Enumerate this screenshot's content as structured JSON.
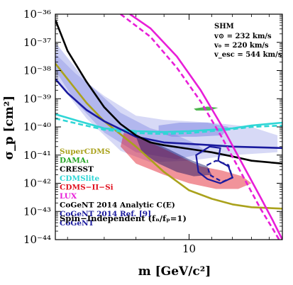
{
  "chart_data": {
    "type": "line",
    "xlabel": "m [GeV/c²]",
    "ylabel": "σ_p [cm²]",
    "x_scale": "log",
    "y_scale": "log",
    "xlim": [
      5.7,
      14.8
    ],
    "ylim": [
      1e-44,
      1e-36
    ],
    "x_ticks": [
      {
        "value": 10,
        "label": "10"
      }
    ],
    "y_ticks": [
      {
        "value": 1e-36,
        "label": "10⁻³⁶"
      },
      {
        "value": 1e-37,
        "label": "10⁻³⁷"
      },
      {
        "value": 1e-38,
        "label": "10⁻³⁸"
      },
      {
        "value": 1e-39,
        "label": "10⁻³⁹"
      },
      {
        "value": 1e-40,
        "label": "10⁻⁴⁰"
      },
      {
        "value": 1e-41,
        "label": "10⁻⁴¹"
      },
      {
        "value": 1e-42,
        "label": "10⁻⁴²"
      },
      {
        "value": 1e-43,
        "label": "10⁻⁴³"
      },
      {
        "value": 1e-44,
        "label": "10⁻⁴⁴"
      }
    ],
    "info_box": {
      "title": "SHM",
      "lines": [
        "v⊙ = 232 km/s",
        "v₀ = 220 km/s",
        "v_esc = 544 km/s"
      ]
    },
    "annotation": "Spin−Independent (fₙ/fₚ=1)",
    "legend": [
      {
        "label": "SuperCDMS",
        "color": "#aaa21c"
      },
      {
        "label": "DAMA₁",
        "color": "#22a322"
      },
      {
        "label": "CRESST",
        "color": "#000000"
      },
      {
        "label": "CDMSlite",
        "color": "#2fd6d6"
      },
      {
        "label": "CDMS−II−Si",
        "color": "#e0101e"
      },
      {
        "label": "LUX",
        "color": "#e81ed8"
      },
      {
        "label": "CoGeNT 2014 Analytic C(E)",
        "color": "#000000"
      },
      {
        "label": "CoGeNT 2014 Ref. [9]",
        "color": "#1a1a9e"
      },
      {
        "label": "CoGeNT",
        "color": "#1a1a9e"
      }
    ],
    "series": [
      {
        "color": "#aaa21c",
        "style": "solid",
        "points": [
          [
            5.7,
            -37.75
          ],
          [
            6.0,
            -38.3
          ],
          [
            6.5,
            -39.15
          ],
          [
            7,
            -39.8
          ],
          [
            8,
            -40.7
          ],
          [
            9,
            -41.6
          ],
          [
            10,
            -42.25
          ],
          [
            11,
            -42.55
          ],
          [
            12,
            -42.75
          ],
          [
            13,
            -42.85
          ],
          [
            14.8,
            -42.9
          ]
        ]
      },
      {
        "color": "#2fd6d6",
        "style": "solid",
        "points": [
          [
            5.7,
            -39.55
          ],
          [
            6.3,
            -39.8
          ],
          [
            7,
            -40.05
          ],
          [
            8,
            -40.15
          ],
          [
            9,
            -40.18
          ],
          [
            10,
            -40.15
          ],
          [
            11,
            -40.1
          ],
          [
            12,
            -40.05
          ],
          [
            13,
            -39.95
          ],
          [
            14.8,
            -39.85
          ]
        ]
      },
      {
        "color": "#2fd6d6",
        "style": "dashed",
        "points": [
          [
            5.7,
            -39.7
          ],
          [
            6.3,
            -39.9
          ],
          [
            7,
            -40.1
          ],
          [
            8,
            -40.22
          ],
          [
            9,
            -40.25
          ],
          [
            10,
            -40.22
          ],
          [
            11,
            -40.15
          ],
          [
            12,
            -40.08
          ],
          [
            13,
            -40.0
          ],
          [
            14.8,
            -39.95
          ]
        ]
      },
      {
        "color": "#1a1a9e",
        "style": "solid",
        "points": [
          [
            5.7,
            -38.3
          ],
          [
            6.0,
            -38.8
          ],
          [
            6.5,
            -39.4
          ],
          [
            7,
            -39.8
          ],
          [
            8,
            -40.35
          ],
          [
            9,
            -40.55
          ],
          [
            10,
            -40.6
          ],
          [
            11,
            -40.65
          ],
          [
            12,
            -40.7
          ],
          [
            13,
            -40.72
          ],
          [
            14.8,
            -40.75
          ]
        ]
      },
      {
        "color": "#000000",
        "style": "solid",
        "points": [
          [
            5.7,
            -36.2
          ],
          [
            6.0,
            -37.3
          ],
          [
            6.5,
            -38.4
          ],
          [
            7,
            -39.3
          ],
          [
            7.5,
            -39.9
          ],
          [
            8,
            -40.3
          ],
          [
            8.5,
            -40.55
          ],
          [
            9,
            -40.65
          ],
          [
            10,
            -40.78
          ],
          [
            11,
            -40.9
          ],
          [
            12,
            -41.05
          ],
          [
            13,
            -41.2
          ],
          [
            14.8,
            -41.3
          ]
        ]
      },
      {
        "color": "#e81ed8",
        "style": "solid",
        "points": [
          [
            7.8,
            -36.0
          ],
          [
            8.5,
            -36.5
          ],
          [
            9.5,
            -37.5
          ],
          [
            10.5,
            -38.7
          ],
          [
            11.5,
            -40.0
          ],
          [
            12.5,
            -41.3
          ],
          [
            13.5,
            -42.5
          ],
          [
            14.2,
            -43.3
          ],
          [
            14.8,
            -44.0
          ]
        ]
      },
      {
        "color": "#e81ed8",
        "style": "dashed",
        "points": [
          [
            7.5,
            -36.0
          ],
          [
            8.5,
            -36.8
          ],
          [
            9.5,
            -37.9
          ],
          [
            10.5,
            -39.1
          ],
          [
            11.5,
            -40.4
          ],
          [
            12.5,
            -41.7
          ],
          [
            13.5,
            -42.9
          ],
          [
            14.2,
            -43.6
          ],
          [
            14.6,
            -44.0
          ]
        ]
      }
    ],
    "regions": [
      {
        "color": "#6e78e0",
        "opacity": 0.28,
        "points": [
          [
            5.7,
            -37.4
          ],
          [
            6.2,
            -38.1
          ],
          [
            7,
            -38.9
          ],
          [
            8,
            -39.6
          ],
          [
            9,
            -39.75
          ],
          [
            11,
            -39.85
          ],
          [
            13,
            -40.0
          ],
          [
            14.5,
            -40.3
          ],
          [
            14.5,
            -40.9
          ],
          [
            12,
            -41.0
          ],
          [
            10,
            -41.2
          ],
          [
            8.5,
            -41.25
          ],
          [
            7.5,
            -40.85
          ],
          [
            6.5,
            -39.7
          ],
          [
            5.7,
            -38.3
          ]
        ]
      },
      {
        "color": "#6e78e0",
        "opacity": 0.35,
        "points": [
          [
            5.7,
            -37.0
          ],
          [
            6.5,
            -38.4
          ],
          [
            7.5,
            -39.5
          ],
          [
            8.5,
            -40.05
          ],
          [
            9.5,
            -40.3
          ],
          [
            10.3,
            -40.6
          ],
          [
            10.8,
            -40.9
          ],
          [
            9.5,
            -41.15
          ],
          [
            8.0,
            -40.9
          ],
          [
            7.0,
            -40.2
          ],
          [
            6.2,
            -39.1
          ],
          [
            5.7,
            -38.0
          ]
        ]
      },
      {
        "color": "#6e78e0",
        "opacity": 0.45,
        "points": [
          [
            8.8,
            -39.95
          ],
          [
            9.6,
            -39.85
          ],
          [
            10.8,
            -39.85
          ],
          [
            11.8,
            -40.0
          ],
          [
            11.5,
            -40.3
          ],
          [
            10.3,
            -40.35
          ],
          [
            9.3,
            -40.35
          ],
          [
            8.8,
            -40.2
          ]
        ]
      },
      {
        "color": "#e0101e",
        "opacity": 0.45,
        "points": [
          [
            7.6,
            -40.2
          ],
          [
            8.4,
            -40.5
          ],
          [
            9.5,
            -41.0
          ],
          [
            10.5,
            -41.4
          ],
          [
            11.5,
            -41.55
          ],
          [
            12.5,
            -41.75
          ],
          [
            13.0,
            -42.0
          ],
          [
            12.3,
            -42.2
          ],
          [
            11.2,
            -42.2
          ],
          [
            10.0,
            -42.0
          ],
          [
            9.0,
            -41.7
          ],
          [
            8.0,
            -41.3
          ],
          [
            7.5,
            -40.7
          ]
        ]
      },
      {
        "color": "#0c0c60",
        "opacity": 0.45,
        "points": [
          [
            8.0,
            -40.35
          ],
          [
            8.5,
            -40.5
          ],
          [
            9.2,
            -40.8
          ],
          [
            10.0,
            -41.15
          ],
          [
            10.8,
            -41.4
          ],
          [
            11.0,
            -41.7
          ],
          [
            10.2,
            -41.75
          ],
          [
            9.5,
            -41.6
          ],
          [
            8.8,
            -41.3
          ],
          [
            8.2,
            -40.9
          ]
        ]
      },
      {
        "color": "#22a322",
        "opacity": 0.8,
        "points": [
          [
            10.2,
            -39.35
          ],
          [
            10.8,
            -39.28
          ],
          [
            11.3,
            -39.32
          ],
          [
            10.9,
            -39.42
          ],
          [
            10.3,
            -39.42
          ]
        ]
      }
    ],
    "outlines": [
      {
        "color": "#1a1a9e",
        "style": "solid",
        "points": [
          [
            10.3,
            -41.0
          ],
          [
            10.9,
            -40.7
          ],
          [
            11.4,
            -40.75
          ],
          [
            11.3,
            -41.2
          ],
          [
            11.8,
            -41.4
          ],
          [
            12.0,
            -41.8
          ],
          [
            11.4,
            -42.0
          ],
          [
            10.8,
            -41.85
          ],
          [
            10.4,
            -41.6
          ]
        ]
      },
      {
        "color": "#1a1a9e",
        "style": "dashed",
        "points": [
          [
            10.8,
            -41.35
          ],
          [
            11.2,
            -41.2
          ],
          [
            11.8,
            -41.35
          ],
          [
            12.0,
            -41.8
          ],
          [
            11.5,
            -41.95
          ],
          [
            10.9,
            -41.7
          ]
        ]
      }
    ]
  }
}
